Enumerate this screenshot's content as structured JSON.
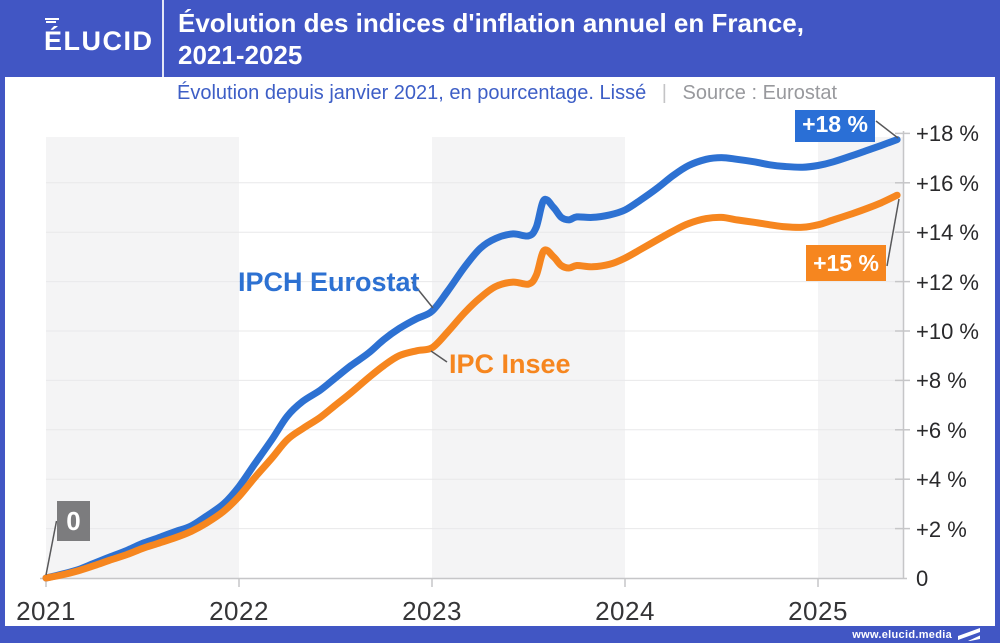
{
  "brand": {
    "logo_text": "ÉLUCID",
    "footer_url": "www.elucid.media"
  },
  "header": {
    "title_line1": "Évolution des indices d'inflation annuel en France,",
    "title_line2": "2021-2025"
  },
  "subtitle": {
    "text": "Évolution depuis janvier 2021, en pourcentage. Lissé",
    "separator": "|",
    "source": "Source : Eurostat"
  },
  "colors": {
    "brand_blue": "#4156c4",
    "line_blue": "#2d71d2",
    "line_orange": "#f6861f",
    "badge_blue": "#2a6fd6",
    "badge_orange": "#f6861f",
    "badge_gray": "#7c7c7e",
    "band_gray": "#f4f4f5",
    "gridline": "#e8e8ea",
    "axis": "#c6c6c8"
  },
  "chart_data": {
    "type": "line",
    "title": "Évolution des indices d'inflation annuel en France, 2021-2025",
    "subtitle": "Évolution depuis janvier 2021, en pourcentage. Lissé",
    "source": "Eurostat",
    "unit": "percent cumulative since January 2021",
    "xlim": [
      2021,
      2025.41
    ],
    "ylim": [
      0,
      18
    ],
    "x_axis": {
      "ticks": [
        {
          "value": 2021,
          "label": "2021"
        },
        {
          "value": 2022,
          "label": "2022"
        },
        {
          "value": 2023,
          "label": "2023"
        },
        {
          "value": 2024,
          "label": "2024"
        },
        {
          "value": 2025,
          "label": "2025"
        }
      ]
    },
    "y_axis": {
      "ticks": [
        {
          "value": 18,
          "label": "+18 %"
        },
        {
          "value": 16,
          "label": "+16 %"
        },
        {
          "value": 14,
          "label": "+14 %"
        },
        {
          "value": 12,
          "label": "+12 %"
        },
        {
          "value": 10,
          "label": "+10 %"
        },
        {
          "value": 8,
          "label": "+8 %"
        },
        {
          "value": 6,
          "label": "+6 %"
        },
        {
          "value": 4,
          "label": "+4 %"
        },
        {
          "value": 2,
          "label": "+2 %"
        },
        {
          "value": 0,
          "label": "0"
        }
      ],
      "gridline_values": [
        2,
        4,
        6,
        8,
        10,
        12,
        14,
        16
      ]
    },
    "annotations": {
      "start_label": "0",
      "ipch_end_label": "+18 %",
      "ipc_end_label": "+15 %"
    },
    "series": [
      {
        "name": "IPCH Eurostat",
        "color": "#2d71d2",
        "points": [
          [
            2021.0,
            0
          ],
          [
            2021.08,
            0.15
          ],
          [
            2021.17,
            0.35
          ],
          [
            2021.25,
            0.6
          ],
          [
            2021.33,
            0.85
          ],
          [
            2021.42,
            1.12
          ],
          [
            2021.5,
            1.4
          ],
          [
            2021.58,
            1.62
          ],
          [
            2021.67,
            1.88
          ],
          [
            2021.75,
            2.1
          ],
          [
            2021.83,
            2.5
          ],
          [
            2021.92,
            3.0
          ],
          [
            2022.0,
            3.7
          ],
          [
            2022.08,
            4.6
          ],
          [
            2022.17,
            5.6
          ],
          [
            2022.25,
            6.55
          ],
          [
            2022.33,
            7.15
          ],
          [
            2022.42,
            7.6
          ],
          [
            2022.5,
            8.1
          ],
          [
            2022.58,
            8.6
          ],
          [
            2022.67,
            9.1
          ],
          [
            2022.75,
            9.65
          ],
          [
            2022.83,
            10.1
          ],
          [
            2022.92,
            10.5
          ],
          [
            2023.0,
            10.8
          ],
          [
            2023.08,
            11.6
          ],
          [
            2023.17,
            12.6
          ],
          [
            2023.25,
            13.35
          ],
          [
            2023.33,
            13.75
          ],
          [
            2023.42,
            13.93
          ],
          [
            2023.5,
            13.85
          ],
          [
            2023.54,
            14.2
          ],
          [
            2023.58,
            15.3
          ],
          [
            2023.63,
            15.0
          ],
          [
            2023.67,
            14.6
          ],
          [
            2023.71,
            14.5
          ],
          [
            2023.75,
            14.62
          ],
          [
            2023.83,
            14.6
          ],
          [
            2023.92,
            14.7
          ],
          [
            2024.0,
            14.9
          ],
          [
            2024.08,
            15.3
          ],
          [
            2024.17,
            15.8
          ],
          [
            2024.25,
            16.3
          ],
          [
            2024.33,
            16.7
          ],
          [
            2024.42,
            16.95
          ],
          [
            2024.5,
            17.02
          ],
          [
            2024.58,
            16.95
          ],
          [
            2024.67,
            16.85
          ],
          [
            2024.75,
            16.73
          ],
          [
            2024.83,
            16.66
          ],
          [
            2024.92,
            16.63
          ],
          [
            2025.0,
            16.7
          ],
          [
            2025.08,
            16.85
          ],
          [
            2025.17,
            17.08
          ],
          [
            2025.25,
            17.3
          ],
          [
            2025.33,
            17.52
          ],
          [
            2025.41,
            17.75
          ]
        ]
      },
      {
        "name": "IPC Insee",
        "color": "#f6861f",
        "points": [
          [
            2021.0,
            0
          ],
          [
            2021.08,
            0.12
          ],
          [
            2021.17,
            0.3
          ],
          [
            2021.25,
            0.5
          ],
          [
            2021.33,
            0.72
          ],
          [
            2021.42,
            0.95
          ],
          [
            2021.5,
            1.2
          ],
          [
            2021.58,
            1.4
          ],
          [
            2021.67,
            1.63
          ],
          [
            2021.75,
            1.88
          ],
          [
            2021.83,
            2.22
          ],
          [
            2021.92,
            2.7
          ],
          [
            2022.0,
            3.3
          ],
          [
            2022.08,
            4.05
          ],
          [
            2022.17,
            4.85
          ],
          [
            2022.25,
            5.6
          ],
          [
            2022.33,
            6.05
          ],
          [
            2022.42,
            6.5
          ],
          [
            2022.5,
            7.0
          ],
          [
            2022.58,
            7.5
          ],
          [
            2022.67,
            8.1
          ],
          [
            2022.75,
            8.6
          ],
          [
            2022.83,
            9.0
          ],
          [
            2022.92,
            9.2
          ],
          [
            2023.0,
            9.32
          ],
          [
            2023.08,
            9.95
          ],
          [
            2023.17,
            10.75
          ],
          [
            2023.25,
            11.35
          ],
          [
            2023.33,
            11.8
          ],
          [
            2023.42,
            11.98
          ],
          [
            2023.5,
            11.9
          ],
          [
            2023.54,
            12.25
          ],
          [
            2023.58,
            13.25
          ],
          [
            2023.63,
            13.0
          ],
          [
            2023.67,
            12.65
          ],
          [
            2023.71,
            12.55
          ],
          [
            2023.75,
            12.65
          ],
          [
            2023.83,
            12.6
          ],
          [
            2023.92,
            12.7
          ],
          [
            2024.0,
            12.95
          ],
          [
            2024.08,
            13.3
          ],
          [
            2024.17,
            13.7
          ],
          [
            2024.25,
            14.05
          ],
          [
            2024.33,
            14.35
          ],
          [
            2024.42,
            14.55
          ],
          [
            2024.5,
            14.6
          ],
          [
            2024.58,
            14.5
          ],
          [
            2024.67,
            14.4
          ],
          [
            2024.75,
            14.3
          ],
          [
            2024.83,
            14.22
          ],
          [
            2024.92,
            14.2
          ],
          [
            2025.0,
            14.3
          ],
          [
            2025.08,
            14.5
          ],
          [
            2025.17,
            14.73
          ],
          [
            2025.25,
            14.95
          ],
          [
            2025.33,
            15.2
          ],
          [
            2025.41,
            15.5
          ]
        ]
      }
    ]
  }
}
